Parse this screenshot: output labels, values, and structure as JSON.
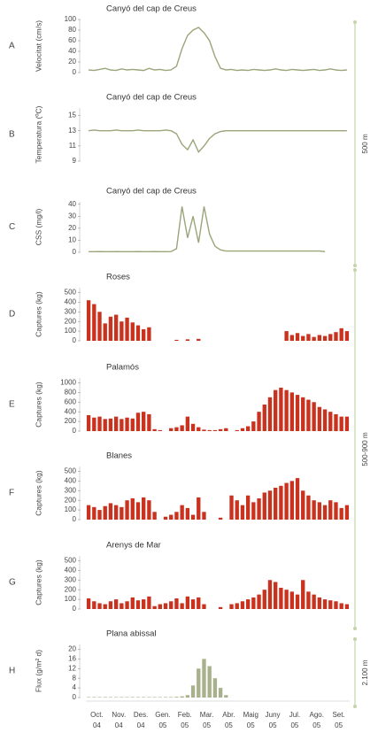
{
  "chart_data": [
    {
      "type": "line",
      "panel": "A",
      "title": "Canyó del cap de Creus",
      "ylabel": "Velocitat (cm/s)",
      "ylim": [
        0,
        100
      ],
      "yticks": [
        0,
        20,
        40,
        60,
        80,
        100
      ],
      "color": "#9aa57a",
      "values": [
        5,
        4,
        6,
        8,
        5,
        4,
        7,
        5,
        6,
        5,
        4,
        8,
        5,
        6,
        4,
        5,
        12,
        45,
        70,
        80,
        85,
        75,
        60,
        30,
        8,
        5,
        6,
        4,
        5,
        4,
        6,
        5,
        4,
        5,
        7,
        5,
        4,
        6,
        5,
        4,
        5,
        6,
        4,
        5,
        7,
        5,
        4,
        5
      ]
    },
    {
      "type": "line",
      "panel": "B",
      "title": "Canyó del cap de Creus",
      "ylabel": "Temperatura (ºC)",
      "ylim": [
        9,
        16
      ],
      "yticks": [
        9,
        11,
        13,
        15
      ],
      "color": "#9aa57a",
      "values": [
        13,
        13.1,
        13,
        13,
        13,
        13.1,
        13,
        13,
        13,
        13.1,
        13,
        13,
        13,
        13,
        13.1,
        13,
        12.6,
        11.2,
        10.5,
        11.8,
        10.2,
        11,
        12,
        12.6,
        12.9,
        13,
        13,
        13,
        13,
        13,
        13,
        13,
        13,
        13,
        13,
        13,
        13,
        13,
        13,
        13,
        13,
        13,
        13,
        13,
        13,
        13,
        13,
        13
      ]
    },
    {
      "type": "line",
      "panel": "C",
      "title": "Canyó del cap de Creus",
      "ylabel": "CSS (mg/l)",
      "ylim": [
        0,
        42
      ],
      "yticks": [
        0,
        10,
        20,
        30,
        40
      ],
      "color": "#9aa57a",
      "values": [
        0.5,
        0.5,
        0.6,
        0.5,
        0.5,
        0.6,
        0.5,
        0.5,
        0.5,
        0.6,
        0.5,
        0.5,
        0.6,
        0.5,
        0.5,
        0.6,
        3,
        38,
        12,
        30,
        8,
        38,
        15,
        5,
        2,
        1,
        1,
        1,
        1,
        1,
        1,
        1,
        1,
        1,
        1,
        1,
        1,
        1,
        1,
        1,
        1,
        1,
        1,
        0.5,
        null,
        null,
        null,
        null
      ]
    },
    {
      "type": "bar",
      "panel": "D",
      "title": "Roses",
      "ylabel": "Captures (kg)",
      "ylim": [
        0,
        550
      ],
      "yticks": [
        0,
        100,
        200,
        300,
        400,
        500
      ],
      "color": "#c8321e",
      "values": [
        420,
        380,
        300,
        180,
        250,
        270,
        200,
        240,
        190,
        160,
        120,
        140,
        null,
        null,
        null,
        null,
        10,
        null,
        15,
        null,
        20,
        null,
        null,
        null,
        null,
        null,
        null,
        null,
        null,
        null,
        null,
        null,
        null,
        null,
        null,
        null,
        100,
        60,
        80,
        50,
        70,
        40,
        60,
        50,
        70,
        90,
        130,
        100
      ]
    },
    {
      "type": "bar",
      "panel": "E",
      "title": "Palamós",
      "ylabel": "Captures (kg)",
      "ylim": [
        0,
        1100
      ],
      "yticks": [
        0,
        200,
        400,
        600,
        800,
        1000
      ],
      "color": "#c8321e",
      "values": [
        330,
        280,
        300,
        250,
        260,
        300,
        250,
        280,
        260,
        380,
        400,
        350,
        40,
        20,
        null,
        60,
        80,
        120,
        300,
        150,
        80,
        30,
        20,
        20,
        40,
        60,
        null,
        20,
        60,
        100,
        200,
        400,
        550,
        700,
        850,
        900,
        850,
        800,
        750,
        700,
        650,
        600,
        500,
        450,
        400,
        350,
        300,
        300
      ]
    },
    {
      "type": "bar",
      "panel": "F",
      "title": "Blanes",
      "ylabel": "Captures (kg)",
      "ylim": [
        0,
        550
      ],
      "yticks": [
        0,
        100,
        200,
        300,
        400,
        500
      ],
      "color": "#c8321e",
      "values": [
        150,
        130,
        100,
        140,
        170,
        150,
        130,
        200,
        220,
        180,
        230,
        200,
        80,
        null,
        30,
        50,
        80,
        150,
        120,
        50,
        230,
        80,
        null,
        null,
        20,
        null,
        250,
        200,
        150,
        250,
        180,
        220,
        280,
        300,
        330,
        350,
        380,
        400,
        430,
        300,
        250,
        200,
        180,
        150,
        200,
        180,
        120,
        150
      ]
    },
    {
      "type": "bar",
      "panel": "G",
      "title": "Arenys de Mar",
      "ylabel": "Captures (kg)",
      "ylim": [
        0,
        550
      ],
      "yticks": [
        0,
        100,
        200,
        300,
        400,
        500
      ],
      "color": "#c8321e",
      "values": [
        110,
        80,
        60,
        50,
        80,
        100,
        60,
        80,
        120,
        90,
        100,
        130,
        30,
        50,
        60,
        80,
        110,
        60,
        130,
        100,
        120,
        50,
        null,
        null,
        20,
        null,
        50,
        60,
        80,
        100,
        120,
        150,
        200,
        300,
        280,
        220,
        200,
        180,
        150,
        300,
        180,
        150,
        120,
        100,
        90,
        80,
        60,
        50
      ]
    },
    {
      "type": "bar",
      "panel": "H",
      "title": "Plana abissal",
      "ylabel": "Flux (g/m² d)",
      "ylim": [
        0,
        22
      ],
      "yticks": [
        0,
        4,
        8,
        12,
        16,
        20
      ],
      "color": "#a8b08c",
      "values": [
        0.2,
        0.2,
        0.2,
        0.2,
        0.2,
        0.2,
        0.2,
        0.2,
        0.2,
        0.2,
        0.2,
        0.2,
        0.2,
        0.2,
        0.2,
        0.2,
        0.3,
        0.5,
        1,
        5,
        12,
        16,
        13,
        8,
        4,
        1,
        null,
        null,
        null,
        null,
        null,
        null,
        null,
        null,
        null,
        null,
        null,
        null,
        null,
        null,
        null,
        null,
        null,
        null,
        null,
        null,
        null,
        null
      ],
      "month_labels": [
        "Oct.",
        "Nov.",
        "Des.",
        "Gen.",
        "Feb.",
        "Mar.",
        "Abr.",
        "Maig",
        "Juny",
        "Jul.",
        "Ago.",
        "Set."
      ],
      "year_labels": [
        "04",
        "04",
        "04",
        "05",
        "05",
        "05",
        "05",
        "05",
        "05",
        "05",
        "05",
        "05"
      ]
    }
  ],
  "depth_labels": [
    "500 m",
    "500-900 m",
    "2.100 m"
  ]
}
